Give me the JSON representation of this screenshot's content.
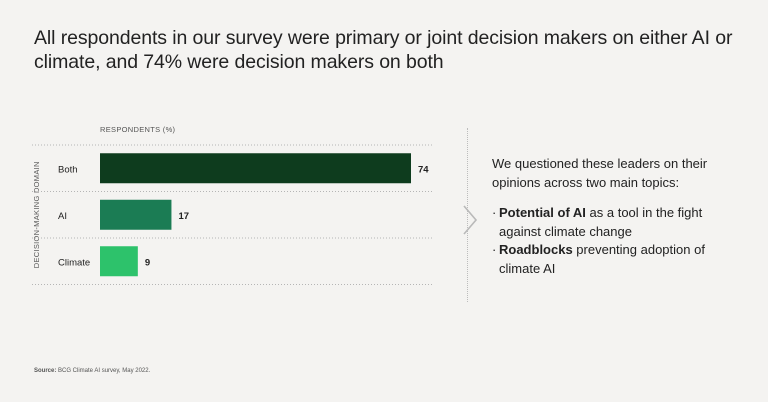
{
  "title": "All respondents in our survey were primary or joint decision makers on either AI or climate, and 74% were decision makers on both",
  "chart_data": {
    "type": "bar",
    "orientation": "horizontal",
    "categories": [
      "Both",
      "AI",
      "Climate"
    ],
    "values": [
      74,
      17,
      9
    ],
    "colors": [
      "#0e3c1e",
      "#1b7c54",
      "#2dc26b"
    ],
    "xlabel": "RESPONDENTS (%)",
    "ylabel": "DECISION-MAKING DOMAIN",
    "xlim": [
      0,
      74
    ],
    "grid": false
  },
  "panel": {
    "intro": "We questioned these leaders on their opinions across two main topics:",
    "bullets": [
      {
        "bold": "Potential of AI",
        "rest": " as a tool in the fight against climate change"
      },
      {
        "bold": "Roadblocks",
        "rest": " preventing adoption of climate AI"
      }
    ],
    "bullet_mark": "·"
  },
  "source": {
    "label": "Source:",
    "text": " BCG Climate AI survey, May 2022."
  }
}
